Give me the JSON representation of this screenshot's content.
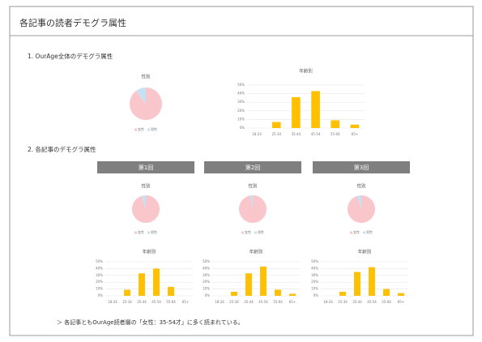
{
  "title": "各記事の読者デモグラ属性",
  "section1": "1.  OurAge全体のデモグラ属性",
  "section2": "2.  各記事のデモグラ属性",
  "headers": [
    "第1回",
    "第2回",
    "第3回"
  ],
  "note": "＞  各記事ともOurAge読者層の「女性：35-54才」に多く読まれている。",
  "chart_data": [
    {
      "type": "pie",
      "title": "性別",
      "labels": [
        "女性",
        "男性"
      ],
      "values": [
        90,
        10
      ],
      "colors": [
        "#f9c6cb",
        "#c5e2f4"
      ]
    },
    {
      "type": "bar",
      "title": "年齢別",
      "categories": [
        "18-24",
        "25-34",
        "35-44",
        "45-54",
        "55-64",
        "65+"
      ],
      "values": [
        0,
        7,
        36,
        43,
        9,
        4
      ],
      "color": "#ffc000",
      "ylim": [
        0,
        50
      ],
      "yticks": [
        {
          "value": 0,
          "label": "0%"
        },
        {
          "value": 10,
          "label": "10%"
        },
        {
          "value": 20,
          "label": "20%"
        },
        {
          "value": 30,
          "label": "30%"
        },
        {
          "value": 40,
          "label": "40%"
        },
        {
          "value": 50,
          "label": "50%"
        }
      ],
      "grid": true
    },
    {
      "type": "pie",
      "title": "性別",
      "labels": [
        "女性",
        "男性"
      ],
      "values": [
        95,
        5
      ],
      "colors": [
        "#f9c6cb",
        "#c5e2f4"
      ]
    },
    {
      "type": "pie",
      "title": "性別",
      "labels": [
        "女性",
        "男性"
      ],
      "values": [
        97,
        3
      ],
      "colors": [
        "#f9c6cb",
        "#c5e2f4"
      ]
    },
    {
      "type": "pie",
      "title": "性別",
      "labels": [
        "女性",
        "男性"
      ],
      "values": [
        95,
        5
      ],
      "colors": [
        "#f9c6cb",
        "#c5e2f4"
      ]
    },
    {
      "type": "bar",
      "title": "年齢別",
      "categories": [
        "18-24",
        "25-34",
        "35-44",
        "45-54",
        "55-64",
        "65+"
      ],
      "values": [
        0,
        9,
        33,
        40,
        13,
        0
      ],
      "color": "#ffc000",
      "ylim": [
        0,
        50
      ],
      "yticks": [
        {
          "value": 0,
          "label": "0%"
        },
        {
          "value": 10,
          "label": "10%"
        },
        {
          "value": 20,
          "label": "20%"
        },
        {
          "value": 30,
          "label": "30%"
        },
        {
          "value": 40,
          "label": "40%"
        },
        {
          "value": 50,
          "label": "50%"
        }
      ],
      "grid": true
    },
    {
      "type": "bar",
      "title": "年齢別",
      "categories": [
        "18-24",
        "25-34",
        "35-44",
        "45-54",
        "55-64",
        "65+"
      ],
      "values": [
        0,
        6,
        33,
        43,
        9,
        3
      ],
      "color": "#ffc000",
      "ylim": [
        0,
        50
      ],
      "yticks": [
        {
          "value": 0,
          "label": "0%"
        },
        {
          "value": 10,
          "label": "10%"
        },
        {
          "value": 20,
          "label": "20%"
        },
        {
          "value": 30,
          "label": "30%"
        },
        {
          "value": 40,
          "label": "40%"
        },
        {
          "value": 50,
          "label": "50%"
        }
      ],
      "grid": true
    },
    {
      "type": "bar",
      "title": "年齢別",
      "categories": [
        "18-24",
        "25-34",
        "35-44",
        "45-54",
        "55-64",
        "65+"
      ],
      "values": [
        0,
        6,
        35,
        42,
        10,
        4
      ],
      "color": "#ffc000",
      "ylim": [
        0,
        50
      ],
      "yticks": [
        {
          "value": 0,
          "label": "0%"
        },
        {
          "value": 10,
          "label": "10%"
        },
        {
          "value": 20,
          "label": "20%"
        },
        {
          "value": 30,
          "label": "30%"
        },
        {
          "value": 40,
          "label": "40%"
        },
        {
          "value": 50,
          "label": "50%"
        }
      ],
      "grid": true
    }
  ]
}
